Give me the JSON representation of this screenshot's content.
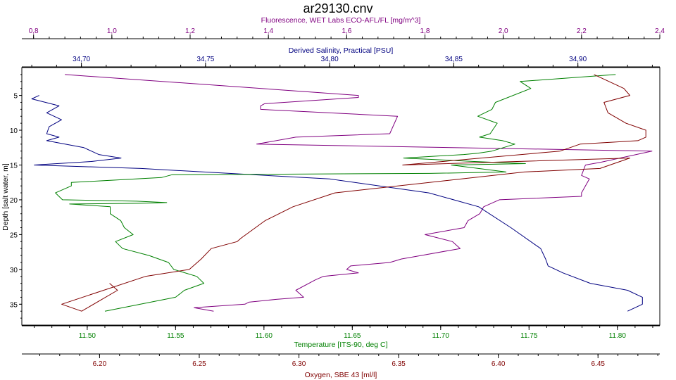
{
  "title": "ar29130.cnv",
  "colors": {
    "fluorescence": "#800080",
    "salinity": "#000080",
    "temperature": "#008000",
    "oxygen": "#800000",
    "depth_axis": "#000000",
    "frame": "#000000"
  },
  "chart_data": {
    "type": "line",
    "title": "ar29130.cnv",
    "grid": false,
    "y_axis": {
      "label": "Depth [salt water, m]",
      "range": [
        38,
        1
      ],
      "ticks": [
        5,
        10,
        15,
        20,
        25,
        30,
        35
      ],
      "tick_labels": [
        "5",
        "10",
        "15",
        "20",
        "25",
        "30",
        "35"
      ],
      "inverted": true
    },
    "x_axes": [
      {
        "id": "fluorescence",
        "label": "Fluorescence, WET Labs ECO-AFL/FL [mg/m^3]",
        "position": "top-outer",
        "range": [
          0.77,
          2.4
        ],
        "ticks": [
          0.8,
          1.0,
          1.2,
          1.4,
          1.6,
          1.8,
          2.0,
          2.2,
          2.4
        ],
        "tick_labels": [
          "0,8",
          "1,0",
          "1,2",
          "1,4",
          "1,6",
          "1,8",
          "2,0",
          "2,2",
          "2,4"
        ]
      },
      {
        "id": "salinity",
        "label": "Derived Salinity, Practical [PSU]",
        "position": "top-inner",
        "range": [
          34.676,
          34.933
        ],
        "ticks": [
          34.7,
          34.75,
          34.8,
          34.85,
          34.9
        ],
        "tick_labels": [
          "34,70",
          "34,75",
          "34,80",
          "34,85",
          "34,90"
        ]
      },
      {
        "id": "temperature",
        "label": "Temperature [ITS-90, deg C]",
        "position": "bottom-inner",
        "range": [
          11.463,
          11.824
        ],
        "ticks": [
          11.5,
          11.55,
          11.6,
          11.65,
          11.7,
          11.75,
          11.8
        ],
        "tick_labels": [
          "11.50",
          "11.55",
          "11.60",
          "11.65",
          "11.70",
          "11.75",
          "11.80"
        ]
      },
      {
        "id": "oxygen",
        "label": "Oxygen, SBE 43 [ml/l]",
        "position": "bottom-outer",
        "range": [
          6.161,
          6.481
        ],
        "ticks": [
          6.2,
          6.25,
          6.3,
          6.35,
          6.4,
          6.45
        ],
        "tick_labels": [
          "6.20",
          "6.25",
          "6.30",
          "6.35",
          "6.40",
          "6.45"
        ]
      }
    ],
    "series": [
      {
        "axis": "fluorescence",
        "x": [
          0.88,
          1.63,
          1.63,
          1.39,
          1.38,
          1.38,
          1.73,
          1.71,
          1.47,
          1.37,
          2.38,
          2.25,
          2.21,
          2.2,
          2.22,
          2.2,
          2.2,
          1.99,
          1.95,
          1.94,
          1.91,
          1.9,
          1.8,
          1.87,
          1.89,
          1.79,
          1.74,
          1.71,
          1.61,
          1.6,
          1.63,
          1.54,
          1.52,
          1.47,
          1.49,
          1.42,
          1.35,
          1.34,
          1.21,
          1.26
        ],
        "y": [
          2,
          5,
          5.3,
          6.2,
          6.5,
          7,
          8,
          10.5,
          11,
          12,
          13,
          14.6,
          15,
          16.5,
          17,
          19,
          19.5,
          20,
          21,
          22,
          23,
          24,
          25,
          26,
          27,
          28,
          28.5,
          29,
          29.5,
          30,
          30.5,
          31,
          31.5,
          33,
          34,
          34.3,
          34.7,
          35,
          35.5,
          36
        ]
      },
      {
        "axis": "salinity",
        "x": [
          34.683,
          34.68,
          34.691,
          34.686,
          34.692,
          34.687,
          34.686,
          34.691,
          34.686,
          34.701,
          34.704,
          34.707,
          34.716,
          34.704,
          34.681,
          34.724,
          34.8,
          34.84,
          34.86,
          34.873,
          34.885,
          34.887,
          34.888,
          34.894,
          34.905,
          34.92,
          34.926,
          34.926,
          34.923,
          34.92
        ],
        "y": [
          5.0,
          5.5,
          6.5,
          7.5,
          8.5,
          9.5,
          10.5,
          11.0,
          11.5,
          12.5,
          13.0,
          13.5,
          14.0,
          14.5,
          15.0,
          15.5,
          17.0,
          19.0,
          21.0,
          24.0,
          27.0,
          28.5,
          29.5,
          30.5,
          32.0,
          33.0,
          34.0,
          35.0,
          35.5,
          36.0
        ]
      },
      {
        "axis": "temperature",
        "x": [
          11.799,
          11.745,
          11.751,
          11.731,
          11.729,
          11.721,
          11.732,
          11.728,
          11.722,
          11.735,
          11.742,
          11.729,
          11.721,
          11.713,
          11.679,
          11.719,
          11.748,
          11.706,
          11.737,
          11.694,
          11.548,
          11.542,
          11.491,
          11.491,
          11.482,
          11.486,
          11.528,
          11.545,
          11.53,
          11.49,
          11.513,
          11.513,
          11.519,
          11.521,
          11.526,
          11.516,
          11.52,
          11.535,
          11.546,
          11.549,
          11.562,
          11.566,
          11.555,
          11.55,
          11.51
        ],
        "y": [
          2,
          3,
          4,
          6,
          7,
          8,
          9,
          10.5,
          11,
          11.5,
          12,
          13,
          13.3,
          13.5,
          14,
          14.5,
          14.8,
          15,
          16,
          16.2,
          16.4,
          16.8,
          17.5,
          18,
          19,
          20,
          20.2,
          20.4,
          20.5,
          20.6,
          21,
          22,
          23,
          24,
          25,
          26,
          27,
          28,
          29,
          30,
          31,
          32,
          33,
          34,
          36
        ]
      },
      {
        "axis": "oxygen",
        "x": [
          6.448,
          6.463,
          6.466,
          6.453,
          6.455,
          6.464,
          6.474,
          6.474,
          6.47,
          6.441,
          6.431,
          6.352,
          6.466,
          6.451,
          6.413,
          6.318,
          6.297,
          6.283,
          6.271,
          6.269,
          6.256,
          6.251,
          6.245,
          6.223,
          6.181,
          6.191,
          6.209,
          6.205
        ],
        "y": [
          2,
          4,
          5,
          6,
          7.5,
          9,
          10,
          11,
          11.5,
          12,
          13,
          15,
          14,
          15.5,
          16,
          19,
          21,
          23,
          25.5,
          26,
          27,
          28.5,
          30,
          31,
          35,
          36,
          33,
          32
        ]
      }
    ]
  }
}
